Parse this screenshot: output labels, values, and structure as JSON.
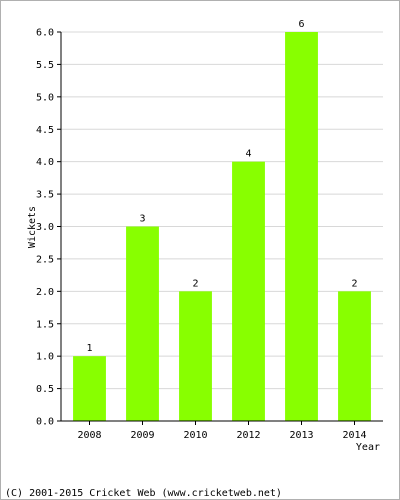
{
  "chart_data": {
    "type": "bar",
    "categories": [
      "2008",
      "2009",
      "2010",
      "2012",
      "2013",
      "2014"
    ],
    "values": [
      1,
      3,
      2,
      4,
      6,
      2
    ],
    "data_labels": [
      "1",
      "3",
      "2",
      "4",
      "6",
      "2"
    ],
    "title": "",
    "xlabel": "Year",
    "ylabel": "Wickets",
    "ylim": [
      0,
      6.0
    ],
    "y_ticks": [
      "0.0",
      "0.5",
      "1.0",
      "1.5",
      "2.0",
      "2.5",
      "3.0",
      "3.5",
      "4.0",
      "4.5",
      "5.0",
      "5.5",
      "6.0"
    ],
    "grid": true,
    "legend": "none",
    "bar_color": "#88ff00",
    "grid_color": "#d8d8d8"
  },
  "footer": {
    "copyright": "(C) 2001-2015 Cricket Web (www.cricketweb.net)"
  }
}
